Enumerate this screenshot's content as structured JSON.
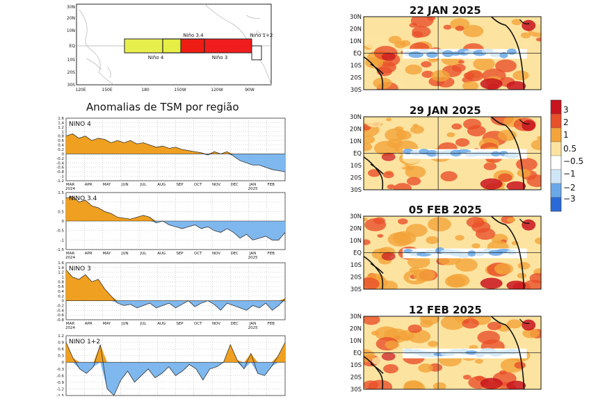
{
  "regions_map": {
    "lat_labels": [
      "30N",
      "20N",
      "10N",
      "EQ",
      "10S",
      "20S",
      "30S"
    ],
    "lon_labels": [
      "120E",
      "150E",
      "180",
      "150W",
      "120W",
      "90W"
    ],
    "boxes": [
      {
        "name": "Niño 4",
        "color": "#e6ee44"
      },
      {
        "name": "Niño 3.4",
        "color": "#e6ee44"
      },
      {
        "name": "Niño 3",
        "color": "#ee1111"
      },
      {
        "name": "Niño 1+2",
        "color": "#ffffff"
      }
    ]
  },
  "series_title": "Anomalias de TSM por região",
  "month_labels": [
    "MAR",
    "APR",
    "MAY",
    "JUN",
    "JUL",
    "AUG",
    "SEP",
    "OCT",
    "NOV",
    "DEC",
    "JAN",
    "FEB"
  ],
  "year_labels": [
    "2024",
    "2025"
  ],
  "colors": {
    "positive": "#f0a020",
    "negative": "#7fb8ee",
    "line": "#333333",
    "grid": "#999999"
  },
  "chart_data": [
    {
      "type": "area",
      "title": "NINO 4",
      "ylim": [
        -1.2,
        1.6
      ],
      "yticks": [
        "1.6",
        "1.4",
        "1.2",
        "1",
        "0.8",
        "0.6",
        "0.4",
        "0.2",
        "0",
        "-0.2",
        "-0.4",
        "-0.6",
        "-0.8",
        "-1",
        "-1.2"
      ],
      "values": [
        0.8,
        0.9,
        0.7,
        0.8,
        0.6,
        0.7,
        0.65,
        0.5,
        0.6,
        0.5,
        0.6,
        0.45,
        0.5,
        0.4,
        0.3,
        0.35,
        0.25,
        0.3,
        0.2,
        0.15,
        0.1,
        0.05,
        -0.05,
        0.1,
        0.0,
        0.1,
        -0.1,
        -0.3,
        -0.4,
        -0.5,
        -0.5,
        -0.6,
        -0.7,
        -0.75,
        -0.8
      ]
    },
    {
      "type": "area",
      "title": "NINO 3.4",
      "ylim": [
        -1.5,
        1.5
      ],
      "yticks": [
        "1.5",
        "1",
        "0.5",
        "0",
        "-0.5",
        "-1",
        "-1.5"
      ],
      "values": [
        1.2,
        1.3,
        1.0,
        1.1,
        0.8,
        0.7,
        0.5,
        0.4,
        0.2,
        0.15,
        0.1,
        0.2,
        0.3,
        0.2,
        -0.1,
        0.0,
        -0.2,
        -0.3,
        -0.4,
        -0.3,
        -0.2,
        -0.4,
        -0.3,
        -0.5,
        -0.6,
        -0.4,
        -0.6,
        -0.9,
        -0.7,
        -1.0,
        -0.9,
        -0.8,
        -1.0,
        -1.0,
        -0.6
      ]
    },
    {
      "type": "area",
      "title": "NINO 3",
      "ylim": [
        -0.8,
        1.6
      ],
      "yticks": [
        "1.6",
        "1.4",
        "1.2",
        "1",
        "0.8",
        "0.6",
        "0.4",
        "0.2",
        "0",
        "-0.2",
        "-0.4",
        "-0.6",
        "-0.8"
      ],
      "values": [
        1.3,
        1.0,
        0.9,
        1.1,
        0.8,
        0.9,
        0.5,
        0.2,
        -0.1,
        -0.2,
        -0.15,
        -0.3,
        -0.2,
        -0.1,
        -0.3,
        -0.2,
        -0.1,
        -0.3,
        -0.15,
        0.0,
        -0.25,
        -0.1,
        0.0,
        -0.15,
        -0.4,
        -0.1,
        -0.2,
        -0.3,
        -0.4,
        -0.2,
        -0.3,
        -0.1,
        -0.4,
        -0.2,
        0.1
      ]
    },
    {
      "type": "area",
      "title": "NINO 1+2",
      "ylim": [
        -1.5,
        1.2
      ],
      "yticks": [
        "1.2",
        "0.9",
        "0.6",
        "0.3",
        "0",
        "-0.3",
        "-0.6",
        "-0.9",
        "-1.2",
        "-1.5"
      ],
      "values": [
        0.9,
        0.2,
        -0.3,
        -0.5,
        -0.2,
        0.8,
        -1.2,
        -1.5,
        -0.8,
        -0.4,
        -0.9,
        -0.6,
        -0.3,
        -0.7,
        -0.5,
        -0.2,
        -0.6,
        -0.4,
        -0.1,
        -0.3,
        -0.8,
        -0.3,
        -0.2,
        0.0,
        0.8,
        0.1,
        -0.3,
        0.4,
        -0.5,
        -0.6,
        -0.2,
        0.3,
        0.9
      ]
    }
  ],
  "anomaly_maps": [
    {
      "date": "22 JAN 2025"
    },
    {
      "date": "29 JAN 2025"
    },
    {
      "date": "05 FEB 2025"
    },
    {
      "date": "12 FEB 2025"
    }
  ],
  "map_lat_labels": [
    "30N",
    "20N",
    "10N",
    "EQ",
    "10S",
    "20S",
    "30S"
  ],
  "colorbar": {
    "labels": [
      "3",
      "2",
      "1",
      "0.5",
      "−0.5",
      "−1",
      "−2",
      "−3"
    ],
    "colors": [
      "#c8141e",
      "#e8502a",
      "#f3a43a",
      "#fde3a0",
      "#ffffff",
      "#cfe6f7",
      "#6aa8e8",
      "#2a6ad8"
    ]
  }
}
